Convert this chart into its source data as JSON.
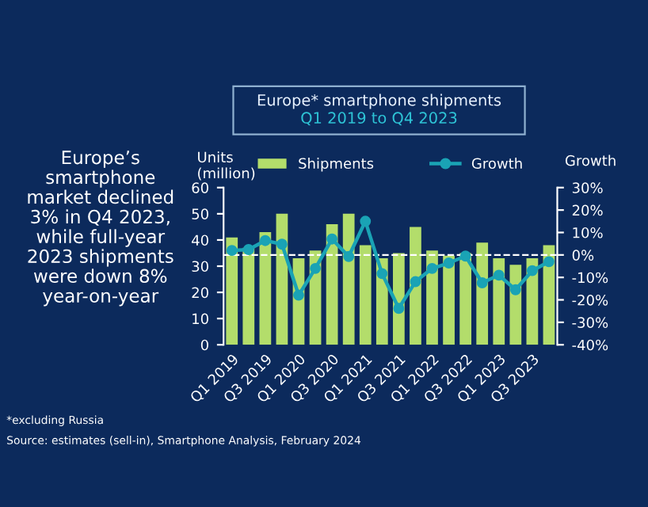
{
  "chart_data": {
    "type": "bar",
    "title": "Europe* smartphone shipments",
    "subtitle": "Q1 2019 to Q4 2023",
    "ylabel": "Units\n(million)",
    "y2label": "Growth",
    "categories": [
      "Q1 2019",
      null,
      "Q3 2019",
      null,
      "Q1 2020",
      null,
      "Q3 2020",
      null,
      "Q1 2021",
      null,
      "Q3 2021",
      null,
      "Q1 2022",
      null,
      "Q3 2022",
      null,
      "Q1 2023",
      null,
      "Q3 2023",
      null
    ],
    "series": [
      {
        "name": "Shipments",
        "color": "#b3dd6b",
        "values": [
          41,
          37,
          43,
          50,
          33,
          36,
          46,
          50,
          38,
          33,
          35,
          45,
          36,
          34,
          35,
          39,
          33,
          30.5,
          33,
          38
        ]
      },
      {
        "name": "Growth",
        "type": "line",
        "axis": "y2",
        "color": "#1aa3b5",
        "values": [
          2,
          2.4,
          6.4,
          4.8,
          -17.9,
          -6,
          7.1,
          -0.7,
          15,
          -8.3,
          -23.8,
          -11.9,
          -6,
          -3.6,
          -0.5,
          -12.4,
          -9,
          -15.5,
          -7,
          -3
        ]
      }
    ],
    "ylim": [
      0,
      60
    ],
    "yticks": [
      0,
      10,
      20,
      30,
      40,
      50,
      60
    ],
    "y2lim": [
      -40,
      30
    ],
    "y2ticks": [
      {
        "value": -40,
        "label": "-40%"
      },
      {
        "value": -30,
        "label": "-30%"
      },
      {
        "value": -20,
        "label": "-20%"
      },
      {
        "value": -10,
        "label": "-10%"
      },
      {
        "value": 0,
        "label": "0%"
      },
      {
        "value": 10,
        "label": "10%"
      },
      {
        "value": 20,
        "label": "20%"
      },
      {
        "value": 30,
        "label": "30%"
      }
    ],
    "ref_lines": [
      {
        "axis": "y2",
        "value": 0,
        "label": null,
        "color": "#ffffff",
        "line_style": "dashed"
      }
    ],
    "legend": "top",
    "grid": false,
    "marker": "circle",
    "annotations": [
      "Europe’s\nsmartphone\nmarket declined\n3% in Q4 2023,\nwhile full-year\n2023 shipments\nwere down 8%\nyear-on-year",
      "*excluding Russia",
      "Source: estimates (sell-in), Smartphone Analysis, February 2024"
    ]
  }
}
